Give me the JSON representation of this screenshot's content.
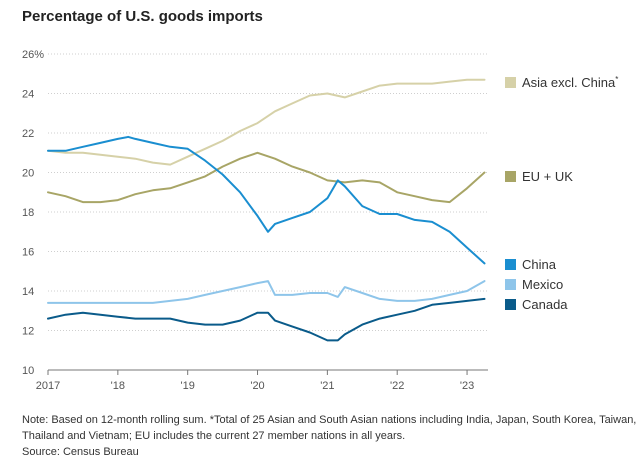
{
  "title": "Percentage of U.S. goods imports",
  "footnote": {
    "note": "Note: Based on 12-month rolling sum. *Total of 25 Asian and South Asian nations including India, Japan, South Korea, Taiwan, Thailand and Vietnam; EU includes the current 27 member nations in all years.",
    "source": "Source: Census Bureau"
  },
  "chart_data": {
    "type": "line",
    "title": "Percentage of U.S. goods imports",
    "xlabel": "",
    "ylabel": "",
    "ylim": [
      10,
      26
    ],
    "xlim": [
      2017.0,
      2023.3
    ],
    "y_ticks": [
      10,
      12,
      14,
      16,
      18,
      20,
      22,
      24,
      26
    ],
    "y_tick_labels": [
      "10",
      "12",
      "14",
      "16",
      "18",
      "20",
      "22",
      "24",
      "26%"
    ],
    "x_ticks": [
      2017,
      2018,
      2019,
      2020,
      2021,
      2022,
      2023
    ],
    "x_tick_labels": [
      "2017",
      "'18",
      "'19",
      "'20",
      "'21",
      "'22",
      "'23"
    ],
    "grid": "horizontal",
    "legend_placement": "right, labels at line ends",
    "series": [
      {
        "name": "Asia excl. China",
        "legend_label": "Asia excl. China",
        "legend_mark": "*",
        "color": "#d6d1a8",
        "x": [
          2017.0,
          2017.25,
          2017.5,
          2017.75,
          2018.0,
          2018.25,
          2018.5,
          2018.75,
          2019.0,
          2019.25,
          2019.5,
          2019.75,
          2020.0,
          2020.25,
          2020.5,
          2020.75,
          2021.0,
          2021.25,
          2021.5,
          2021.75,
          2022.0,
          2022.25,
          2022.5,
          2022.75,
          2023.0,
          2023.25
        ],
        "y": [
          21.1,
          21.0,
          21.0,
          20.9,
          20.8,
          20.7,
          20.5,
          20.4,
          20.8,
          21.2,
          21.6,
          22.1,
          22.5,
          23.1,
          23.5,
          23.9,
          24.0,
          23.8,
          24.1,
          24.4,
          24.5,
          24.5,
          24.5,
          24.6,
          24.7,
          24.7
        ]
      },
      {
        "name": "EU + UK",
        "legend_label": "EU + UK",
        "color": "#a8a566",
        "x": [
          2017.0,
          2017.25,
          2017.5,
          2017.75,
          2018.0,
          2018.25,
          2018.5,
          2018.75,
          2019.0,
          2019.25,
          2019.5,
          2019.75,
          2020.0,
          2020.25,
          2020.5,
          2020.75,
          2021.0,
          2021.25,
          2021.5,
          2021.75,
          2022.0,
          2022.25,
          2022.5,
          2022.75,
          2023.0,
          2023.25
        ],
        "y": [
          19.0,
          18.8,
          18.5,
          18.5,
          18.6,
          18.9,
          19.1,
          19.2,
          19.5,
          19.8,
          20.3,
          20.7,
          21.0,
          20.7,
          20.3,
          20.0,
          19.6,
          19.5,
          19.6,
          19.5,
          19.0,
          18.8,
          18.6,
          18.5,
          19.2,
          20.0
        ]
      },
      {
        "name": "China",
        "legend_label": "China",
        "color": "#1a8ed0",
        "x": [
          2017.0,
          2017.25,
          2017.5,
          2017.75,
          2018.0,
          2018.15,
          2018.25,
          2018.5,
          2018.75,
          2019.0,
          2019.25,
          2019.5,
          2019.75,
          2020.0,
          2020.15,
          2020.25,
          2020.5,
          2020.75,
          2021.0,
          2021.15,
          2021.25,
          2021.5,
          2021.75,
          2022.0,
          2022.25,
          2022.5,
          2022.75,
          2023.0,
          2023.25
        ],
        "y": [
          21.1,
          21.1,
          21.3,
          21.5,
          21.7,
          21.8,
          21.7,
          21.5,
          21.3,
          21.2,
          20.6,
          19.9,
          19.0,
          17.8,
          17.0,
          17.4,
          17.7,
          18.0,
          18.7,
          19.6,
          19.3,
          18.3,
          17.9,
          17.9,
          17.6,
          17.5,
          17.0,
          16.2,
          15.4
        ]
      },
      {
        "name": "Mexico",
        "legend_label": "Mexico",
        "color": "#8ec5ea",
        "x": [
          2017.0,
          2017.25,
          2017.5,
          2017.75,
          2018.0,
          2018.25,
          2018.5,
          2018.75,
          2019.0,
          2019.25,
          2019.5,
          2019.75,
          2020.0,
          2020.15,
          2020.25,
          2020.5,
          2020.75,
          2021.0,
          2021.15,
          2021.25,
          2021.5,
          2021.75,
          2022.0,
          2022.25,
          2022.5,
          2022.75,
          2023.0,
          2023.25
        ],
        "y": [
          13.4,
          13.4,
          13.4,
          13.4,
          13.4,
          13.4,
          13.4,
          13.5,
          13.6,
          13.8,
          14.0,
          14.2,
          14.4,
          14.5,
          13.8,
          13.8,
          13.9,
          13.9,
          13.7,
          14.2,
          13.9,
          13.6,
          13.5,
          13.5,
          13.6,
          13.8,
          14.0,
          14.5
        ]
      },
      {
        "name": "Canada",
        "legend_label": "Canada",
        "color": "#0a5b8a",
        "x": [
          2017.0,
          2017.25,
          2017.5,
          2017.75,
          2018.0,
          2018.25,
          2018.5,
          2018.75,
          2019.0,
          2019.25,
          2019.5,
          2019.75,
          2020.0,
          2020.15,
          2020.25,
          2020.5,
          2020.75,
          2021.0,
          2021.15,
          2021.25,
          2021.5,
          2021.75,
          2022.0,
          2022.25,
          2022.5,
          2022.75,
          2023.0,
          2023.25
        ],
        "y": [
          12.6,
          12.8,
          12.9,
          12.8,
          12.7,
          12.6,
          12.6,
          12.6,
          12.4,
          12.3,
          12.3,
          12.5,
          12.9,
          12.9,
          12.5,
          12.2,
          11.9,
          11.5,
          11.5,
          11.8,
          12.3,
          12.6,
          12.8,
          13.0,
          13.3,
          13.4,
          13.5,
          13.6
        ]
      }
    ]
  }
}
